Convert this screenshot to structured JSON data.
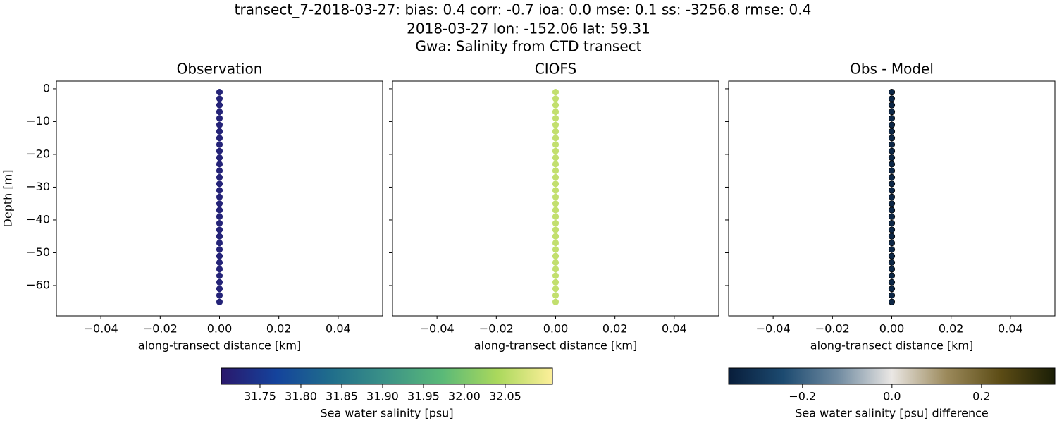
{
  "suptitle": [
    "transect_7-2018-03-27: bias: 0.4  corr: -0.7  ioa: 0.0  mse: 0.1  ss: -3256.8  rmse: 0.4",
    "2018-03-27 lon: -152.06 lat: 59.31",
    "Gwa: Salinity from CTD transect"
  ],
  "chart_data": [
    {
      "type": "scatter",
      "title": "Observation",
      "xlabel": "along-transect distance [km]",
      "ylabel": "Depth [m]",
      "xlim": [
        -0.055,
        0.055
      ],
      "ylim": [
        -69.25,
        2.35
      ],
      "xticks": [
        {
          "value": -0.04,
          "label": "−0.04"
        },
        {
          "value": -0.02,
          "label": "−0.02"
        },
        {
          "value": 0,
          "label": "0.00"
        },
        0.02,
        0.04
      ],
      "yticks": [
        0,
        {
          "value": -10,
          "label": "−10"
        },
        {
          "value": -20,
          "label": "−20"
        },
        {
          "value": -30,
          "label": "−30"
        },
        {
          "value": -40,
          "label": "−40"
        },
        {
          "value": -50,
          "label": "−50"
        },
        {
          "value": -60,
          "label": "−60"
        }
      ],
      "x": [
        0,
        0,
        0,
        0,
        0,
        0,
        0,
        0,
        0,
        0,
        0,
        0,
        0,
        0,
        0,
        0,
        0,
        0,
        0,
        0,
        0,
        0,
        0,
        0,
        0,
        0,
        0,
        0,
        0,
        0,
        0,
        0,
        0
      ],
      "y": [
        -1,
        -3,
        -5,
        -7,
        -9,
        -11,
        -13,
        -15,
        -17,
        -19,
        -21,
        -23,
        -25,
        -27,
        -29,
        -31,
        -33,
        -35,
        -37,
        -39,
        -41,
        -43,
        -45,
        -47,
        -49,
        -51,
        -53,
        -55,
        -57,
        -59,
        -61,
        -63,
        -65
      ],
      "c": 31.72
    },
    {
      "type": "scatter",
      "title": "CIOFS",
      "xlabel": "along-transect distance [km]",
      "xlim": [
        -0.055,
        0.055
      ],
      "ylim": [
        -69.25,
        2.35
      ],
      "xticks": [
        {
          "value": -0.04,
          "label": "−0.04"
        },
        {
          "value": -0.02,
          "label": "−0.02"
        },
        {
          "value": 0,
          "label": "0.00"
        },
        0.02,
        0.04
      ],
      "x": [
        0,
        0,
        0,
        0,
        0,
        0,
        0,
        0,
        0,
        0,
        0,
        0,
        0,
        0,
        0,
        0,
        0,
        0,
        0,
        0,
        0,
        0,
        0,
        0,
        0,
        0,
        0,
        0,
        0,
        0,
        0,
        0,
        0
      ],
      "y": [
        -1,
        -3,
        -5,
        -7,
        -9,
        -11,
        -13,
        -15,
        -17,
        -19,
        -21,
        -23,
        -25,
        -27,
        -29,
        -31,
        -33,
        -35,
        -37,
        -39,
        -41,
        -43,
        -45,
        -47,
        -49,
        -51,
        -53,
        -55,
        -57,
        -59,
        -61,
        -63,
        -65
      ],
      "c": 32.06
    },
    {
      "type": "scatter",
      "title": "Obs - Model",
      "xlabel": "along-transect distance [km]",
      "xlim": [
        -0.055,
        0.055
      ],
      "ylim": [
        -69.25,
        2.35
      ],
      "xticks": [
        {
          "value": -0.04,
          "label": "−0.04"
        },
        {
          "value": -0.02,
          "label": "−0.02"
        },
        {
          "value": 0,
          "label": "0.00"
        },
        0.02,
        0.04
      ],
      "x": [
        0,
        0,
        0,
        0,
        0,
        0,
        0,
        0,
        0,
        0,
        0,
        0,
        0,
        0,
        0,
        0,
        0,
        0,
        0,
        0,
        0,
        0,
        0,
        0,
        0,
        0,
        0,
        0,
        0,
        0,
        0,
        0,
        0
      ],
      "y": [
        -1,
        -3,
        -5,
        -7,
        -9,
        -11,
        -13,
        -15,
        -17,
        -19,
        -21,
        -23,
        -25,
        -27,
        -29,
        -31,
        -33,
        -35,
        -37,
        -39,
        -41,
        -43,
        -45,
        -47,
        -49,
        -51,
        -53,
        -55,
        -57,
        -59,
        -61,
        -63,
        -65
      ],
      "c": -0.34
    }
  ],
  "colorbars": [
    {
      "label": "Sea water salinity [psu]",
      "clim": [
        31.7026,
        32.1078
      ],
      "ticks": [
        31.75,
        {
          "value": 31.8,
          "label": "31.80"
        },
        31.85,
        {
          "value": 31.9,
          "label": "31.90"
        },
        31.95,
        {
          "value": 32,
          "label": "32.00"
        },
        32.05
      ],
      "colormap": [
        "#2a186c",
        "#14439c",
        "#206e8b",
        "#3c9387",
        "#5ab978",
        "#aad85c",
        "#fdef9a"
      ]
    },
    {
      "label": "Sea water salinity [psu] difference",
      "clim": [
        -0.365,
        0.364
      ],
      "ticks": [
        {
          "value": -0.2,
          "label": "−0.2"
        },
        {
          "value": 0,
          "label": "0.0"
        },
        0.2
      ],
      "colormap": [
        "#081d3a",
        "#1c4a70",
        "#6f8aa0",
        "#eae7e4",
        "#9c8a5c",
        "#5c4c15",
        "#1a1e06"
      ]
    }
  ]
}
